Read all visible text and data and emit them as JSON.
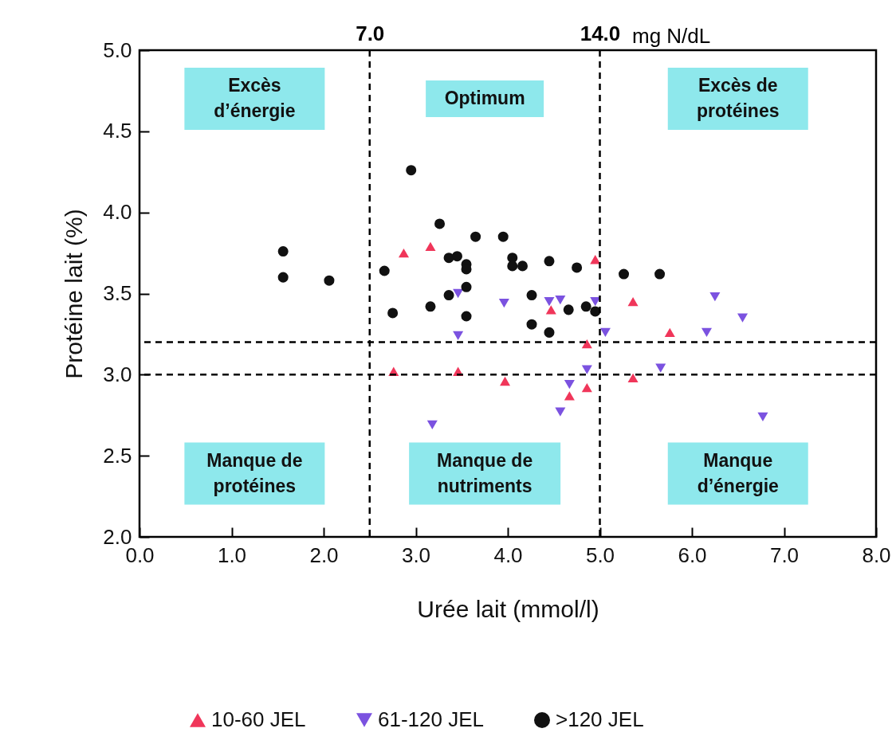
{
  "chart_data": {
    "type": "scatter",
    "xlabel": "Urée lait (mmol/l)",
    "ylabel": "Protéine lait (%)",
    "xlim": [
      0,
      8
    ],
    "ylim": [
      2,
      5
    ],
    "xticks": [
      {
        "value": 0,
        "label": "0.0"
      },
      {
        "value": 1,
        "label": "1.0"
      },
      {
        "value": 2,
        "label": "2.0"
      },
      {
        "value": 3,
        "label": "3.0"
      },
      {
        "value": 4,
        "label": "4.0"
      },
      {
        "value": 5,
        "label": "5.0"
      },
      {
        "value": 6,
        "label": "6.0"
      },
      {
        "value": 7,
        "label": "7.0"
      },
      {
        "value": 8,
        "label": "8.0"
      }
    ],
    "yticks": [
      {
        "value": 2,
        "label": "2.0"
      },
      2.5,
      {
        "value": 3,
        "label": "3.0"
      },
      3.5,
      {
        "value": 4,
        "label": "4.0"
      },
      4.5,
      {
        "value": 5,
        "label": "5.0"
      }
    ],
    "grid": false,
    "legend": "bottom",
    "series": [
      {
        "name": "10-60 JEL",
        "color": "#f0365a",
        "marker": "triangle",
        "x": [
          2.87,
          3.16,
          4.95,
          4.47,
          4.86,
          2.76,
          3.46,
          3.97,
          4.86,
          4.67,
          5.36,
          5.76,
          5.36
        ],
        "values": [
          3.75,
          3.79,
          3.71,
          3.4,
          3.19,
          3.02,
          3.02,
          2.96,
          2.92,
          2.87,
          3.45,
          3.26,
          2.98
        ]
      },
      {
        "name": "61-120 JEL",
        "color": "#7b52e0",
        "marker": "triangle-down",
        "x": [
          3.46,
          3.96,
          4.45,
          4.57,
          4.95,
          3.46,
          3.18,
          4.67,
          4.86,
          4.57,
          6.25,
          6.55,
          5.06,
          6.16,
          5.66,
          6.77
        ],
        "values": [
          3.5,
          3.44,
          3.45,
          3.46,
          3.45,
          3.24,
          2.69,
          2.94,
          3.03,
          2.77,
          3.48,
          3.35,
          3.26,
          3.26,
          3.04,
          2.74
        ]
      },
      {
        "name": ">120 JEL",
        "color": "#111111",
        "marker": "circle",
        "x": [
          2.95,
          3.26,
          3.65,
          3.95,
          3.36,
          3.45,
          3.55,
          3.55,
          4.05,
          4.05,
          4.16,
          4.45,
          4.75,
          2.66,
          3.55,
          3.36,
          4.26,
          2.75,
          3.16,
          3.55,
          4.66,
          4.85,
          4.95,
          4.26,
          4.45,
          1.56,
          1.56,
          2.06,
          5.26,
          5.65
        ],
        "values": [
          4.26,
          3.93,
          3.85,
          3.85,
          3.72,
          3.73,
          3.68,
          3.65,
          3.72,
          3.67,
          3.67,
          3.7,
          3.66,
          3.64,
          3.54,
          3.49,
          3.49,
          3.38,
          3.42,
          3.36,
          3.4,
          3.42,
          3.39,
          3.31,
          3.26,
          3.76,
          3.6,
          3.58,
          3.62,
          3.62
        ]
      }
    ],
    "ref_lines": [
      {
        "axis": "x",
        "value": 2.5,
        "label": null,
        "line_style": "dashed"
      },
      {
        "axis": "x",
        "value": 5.0,
        "label": null,
        "line_style": "dashed"
      },
      {
        "axis": "y",
        "value": 3.2,
        "label": null,
        "line_style": "dashed"
      },
      {
        "axis": "y",
        "value": 3.0,
        "label": null,
        "line_style": "dashed"
      }
    ],
    "annotations": [
      "Excès\nd’énergie",
      "Optimum",
      "Excès de\nprotéines",
      "Manque de\nprotéines",
      "Manque de\nnutriments",
      "Manque\nd’énergie"
    ],
    "x2label": "mg N/dL",
    "x2lim": [
      0,
      22.4
    ],
    "x2ticks": [
      {
        "value": 7,
        "label": "7.0"
      },
      {
        "value": 14,
        "label": "14.0"
      }
    ]
  }
}
